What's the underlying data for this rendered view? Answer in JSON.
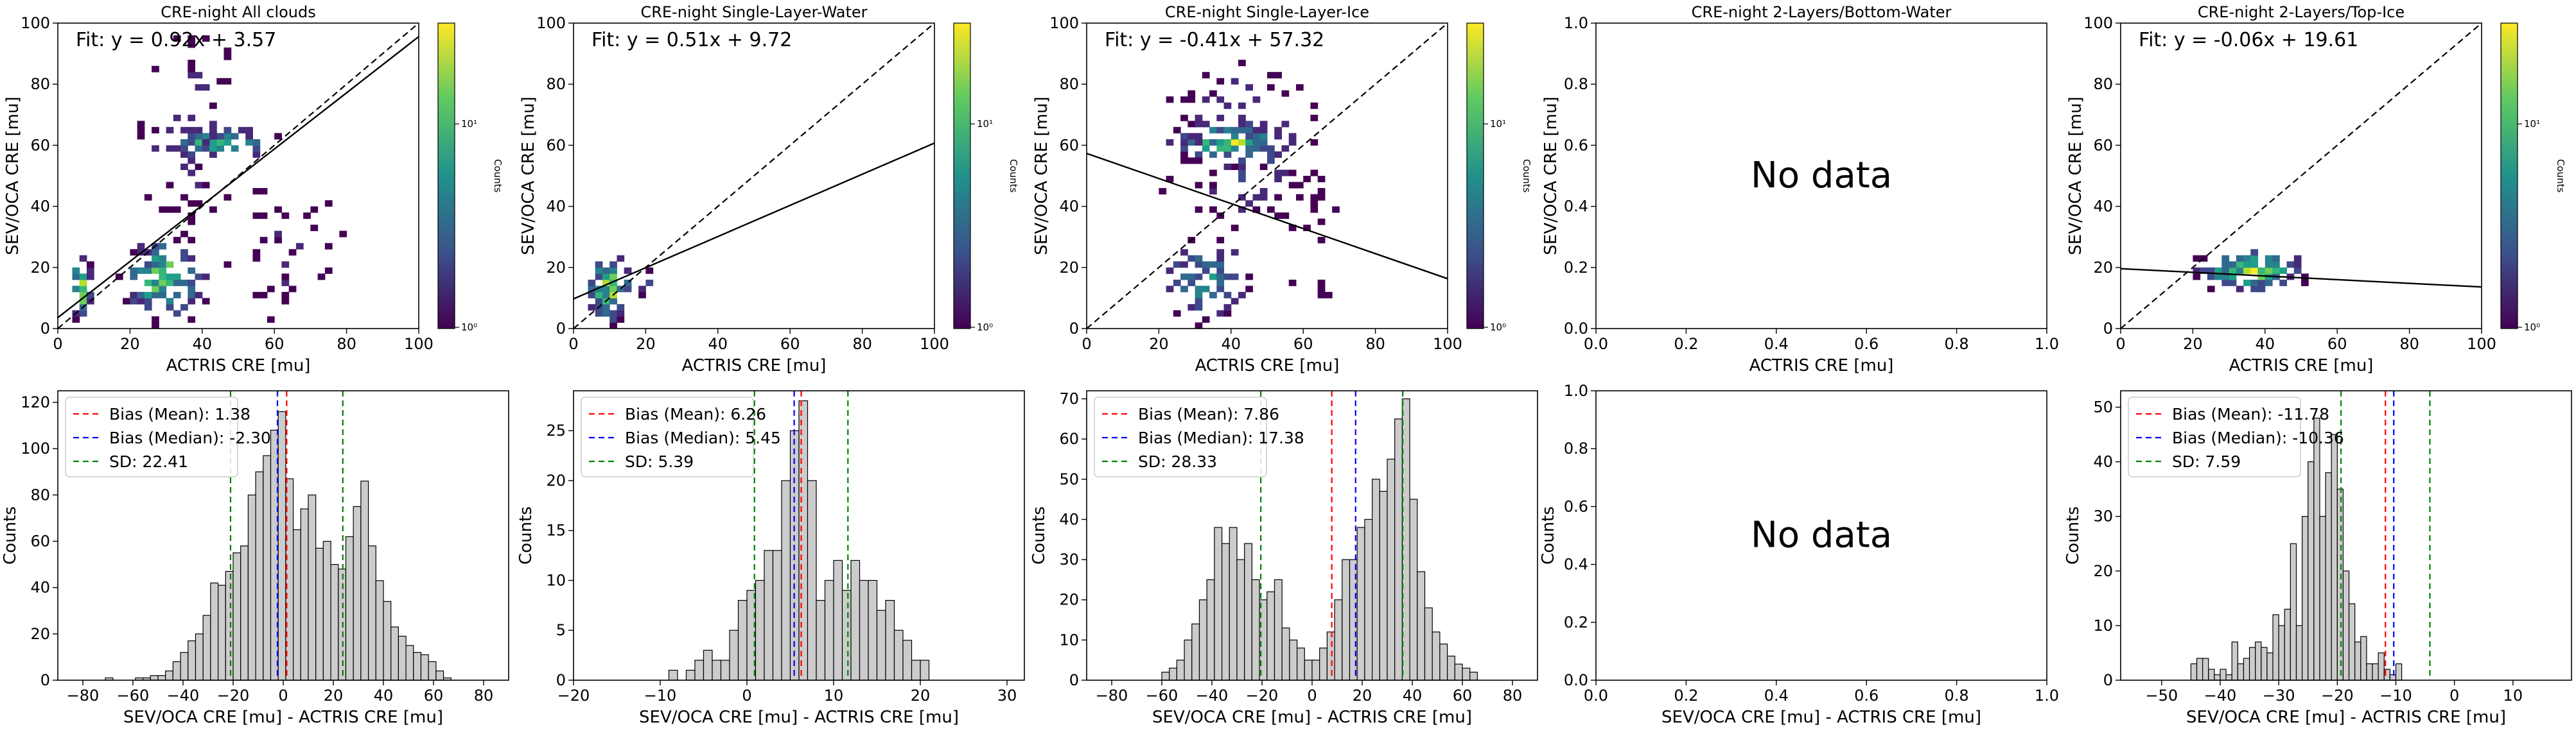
{
  "figure_title": "",
  "colorbar_label": "Counts",
  "nodata_text": "No data",
  "chart_data": [
    {
      "type": "heatmap",
      "title": "CRE-night All clouds",
      "xlabel": "ACTRIS CRE [mu]",
      "ylabel": "SEV/OCA CRE [mu]",
      "xlim": [
        0,
        100
      ],
      "ylim": [
        0,
        100
      ],
      "xticks": [
        "0",
        "20",
        "40",
        "60",
        "80",
        "100"
      ],
      "yticks": [
        "0",
        "20",
        "40",
        "60",
        "80",
        "100"
      ],
      "fit_text": "Fit: y = 0.92x + 3.57",
      "fit": {
        "slope": 0.92,
        "intercept": 3.57
      },
      "one_to_one": true,
      "colorbar": {
        "ticks": [
          "10⁰",
          "10¹"
        ],
        "label": "Counts"
      },
      "clusters": [
        {
          "x": [
            2,
            9
          ],
          "y": [
            0,
            24
          ],
          "weight": 1.0
        },
        {
          "x": [
            16,
            42
          ],
          "y": [
            0,
            30
          ],
          "weight": 0.95
        },
        {
          "x": [
            22,
            62
          ],
          "y": [
            54,
            66
          ],
          "weight": 0.75
        },
        {
          "x": [
            22,
            50
          ],
          "y": [
            28,
            98
          ],
          "weight": 0.25
        },
        {
          "x": [
            44,
            80
          ],
          "y": [
            0,
            48
          ],
          "weight": 0.15
        }
      ]
    },
    {
      "type": "heatmap",
      "title": "CRE-night Single-Layer-Water",
      "xlabel": "ACTRIS CRE [mu]",
      "ylabel": "SEV/OCA CRE [mu]",
      "xlim": [
        0,
        100
      ],
      "ylim": [
        0,
        100
      ],
      "xticks": [
        "0",
        "20",
        "40",
        "60",
        "80",
        "100"
      ],
      "yticks": [
        "0",
        "20",
        "40",
        "60",
        "80",
        "100"
      ],
      "fit_text": "Fit: y = 0.51x + 9.72",
      "fit": {
        "slope": 0.51,
        "intercept": 9.72
      },
      "one_to_one": true,
      "colorbar": {
        "ticks": [
          "10⁰",
          "10¹"
        ],
        "label": "Counts"
      },
      "clusters": [
        {
          "x": [
            2,
            16
          ],
          "y": [
            0,
            24
          ],
          "weight": 1.0
        },
        {
          "x": [
            16,
            22
          ],
          "y": [
            8,
            20
          ],
          "weight": 0.3
        }
      ]
    },
    {
      "type": "heatmap",
      "title": "CRE-night Single-Layer-Ice",
      "xlabel": "ACTRIS CRE [mu]",
      "ylabel": "SEV/OCA CRE [mu]",
      "xlim": [
        0,
        100
      ],
      "ylim": [
        0,
        100
      ],
      "xticks": [
        "0",
        "20",
        "40",
        "60",
        "80",
        "100"
      ],
      "yticks": [
        "0",
        "20",
        "40",
        "60",
        "80",
        "100"
      ],
      "fit_text": "Fit: y = -0.41x + 57.32",
      "fit": {
        "slope": -0.41,
        "intercept": 57.32
      },
      "one_to_one": true,
      "colorbar": {
        "ticks": [
          "10⁰",
          "10¹"
        ],
        "label": "Counts"
      },
      "clusters": [
        {
          "x": [
            20,
            58
          ],
          "y": [
            52,
            68
          ],
          "weight": 0.85
        },
        {
          "x": [
            18,
            46
          ],
          "y": [
            0,
            30
          ],
          "weight": 0.6
        },
        {
          "x": [
            20,
            66
          ],
          "y": [
            28,
            92
          ],
          "weight": 0.3
        },
        {
          "x": [
            50,
            76
          ],
          "y": [
            10,
            50
          ],
          "weight": 0.15
        }
      ]
    },
    {
      "type": "heatmap",
      "title": "CRE-night 2-Layers/Bottom-Water",
      "xlabel": "ACTRIS CRE [mu]",
      "ylabel": "SEV/OCA CRE [mu]",
      "xlim": [
        0,
        1
      ],
      "ylim": [
        0,
        1
      ],
      "xticks": [
        "0.0",
        "0.2",
        "0.4",
        "0.6",
        "0.8",
        "1.0"
      ],
      "yticks": [
        "0.0",
        "0.2",
        "0.4",
        "0.6",
        "0.8",
        "1.0"
      ],
      "nodata": true
    },
    {
      "type": "heatmap",
      "title": "CRE-night 2-Layers/Top-Ice",
      "xlabel": "ACTRIS CRE [mu]",
      "ylabel": "SEV/OCA CRE [mu]",
      "xlim": [
        0,
        100
      ],
      "ylim": [
        0,
        100
      ],
      "xticks": [
        "0",
        "20",
        "40",
        "60",
        "80",
        "100"
      ],
      "yticks": [
        "0",
        "20",
        "40",
        "60",
        "80",
        "100"
      ],
      "fit_text": "Fit: y = -0.06x + 19.61",
      "fit": {
        "slope": -0.06,
        "intercept": 19.61
      },
      "one_to_one": true,
      "colorbar": {
        "ticks": [
          "10⁰",
          "10¹"
        ],
        "label": "Counts"
      },
      "clusters": [
        {
          "x": [
            18,
            52
          ],
          "y": [
            10,
            26
          ],
          "weight": 0.95
        }
      ]
    },
    {
      "type": "bar",
      "xlabel": "SEV/OCA CRE [mu] - ACTRIS CRE [mu]",
      "ylabel": "Counts",
      "xlim": [
        -90,
        90
      ],
      "ylim": [
        0,
        125
      ],
      "xtick_values": [
        -80,
        -60,
        -40,
        -20,
        0,
        20,
        40,
        60,
        80
      ],
      "xticks": [
        "−80",
        "−60",
        "−40",
        "−20",
        "0",
        "20",
        "40",
        "60",
        "80"
      ],
      "ytick_values": [
        0,
        20,
        40,
        60,
        80,
        100,
        120
      ],
      "yticks": [
        "0",
        "20",
        "40",
        "60",
        "80",
        "100",
        "120"
      ],
      "bin_start": -80,
      "bin_width": 3,
      "values": [
        0,
        0,
        0,
        1,
        0,
        0,
        0,
        1,
        1,
        2,
        2,
        4,
        8,
        12,
        17,
        20,
        28,
        42,
        41,
        47,
        55,
        58,
        80,
        90,
        97,
        108,
        116,
        87,
        65,
        74,
        80,
        57,
        60,
        50,
        48,
        62,
        75,
        86,
        58,
        43,
        34,
        23,
        19,
        15,
        12,
        11,
        8,
        4,
        1,
        0,
        0,
        0,
        0,
        0,
        0,
        0,
        0
      ],
      "legend": [
        "Bias (Mean): 1.38",
        "Bias (Median): -2.30",
        "SD: 22.41"
      ],
      "mean": 1.38,
      "median": -2.3,
      "sd": 22.41
    },
    {
      "type": "bar",
      "xlabel": "SEV/OCA CRE [mu] - ACTRIS CRE [mu]",
      "ylabel": "Counts",
      "xlim": [
        -20,
        32
      ],
      "ylim": [
        0,
        29
      ],
      "xtick_values": [
        -20,
        -10,
        0,
        10,
        20,
        30
      ],
      "xticks": [
        "−20",
        "−10",
        "0",
        "10",
        "20",
        "30"
      ],
      "ytick_values": [
        0,
        5,
        10,
        15,
        20,
        25
      ],
      "yticks": [
        "0",
        "5",
        "10",
        "15",
        "20",
        "25"
      ],
      "bin_start": -9,
      "bin_width": 1,
      "values": [
        1,
        0,
        1,
        2,
        3,
        2,
        2,
        5,
        8,
        9,
        10,
        13,
        13,
        20,
        25,
        28,
        20,
        8,
        10,
        12,
        9,
        12,
        10,
        10,
        7,
        8,
        5,
        4,
        2,
        2
      ],
      "legend": [
        "Bias (Mean): 6.26",
        "Bias (Median): 5.45",
        "SD: 5.39"
      ],
      "mean": 6.26,
      "median": 5.45,
      "sd": 5.39
    },
    {
      "type": "bar",
      "xlabel": "SEV/OCA CRE [mu] - ACTRIS CRE [mu]",
      "ylabel": "Counts",
      "xlim": [
        -90,
        90
      ],
      "ylim": [
        0,
        72
      ],
      "xtick_values": [
        -80,
        -60,
        -40,
        -20,
        0,
        20,
        40,
        60,
        80
      ],
      "xticks": [
        "−80",
        "−60",
        "−40",
        "−20",
        "0",
        "20",
        "40",
        "60",
        "80"
      ],
      "ytick_values": [
        0,
        10,
        20,
        30,
        40,
        50,
        60,
        70
      ],
      "yticks": [
        "0",
        "10",
        "20",
        "30",
        "40",
        "50",
        "60",
        "70"
      ],
      "bin_start": -60,
      "bin_width": 3,
      "values": [
        2,
        3,
        5,
        10,
        14,
        20,
        25,
        38,
        34,
        38,
        30,
        34,
        25,
        20,
        22,
        25,
        13,
        10,
        8,
        5,
        5,
        8,
        12,
        20,
        30,
        30,
        38,
        40,
        50,
        47,
        55,
        65,
        70,
        45,
        27,
        18,
        12,
        9,
        6,
        4,
        3,
        2
      ],
      "legend": [
        "Bias (Mean): 7.86",
        "Bias (Median): 17.38",
        "SD: 28.33"
      ],
      "mean": 7.86,
      "median": 17.38,
      "sd": 28.33
    },
    {
      "type": "bar",
      "xlabel": "SEV/OCA CRE [mu] - ACTRIS CRE [mu]",
      "ylabel": "Counts",
      "xlim": [
        0,
        1
      ],
      "ylim": [
        0,
        1
      ],
      "xtick_values": [
        0.0,
        0.2,
        0.4,
        0.6,
        0.8,
        1.0
      ],
      "xticks": [
        "0.0",
        "0.2",
        "0.4",
        "0.6",
        "0.8",
        "1.0"
      ],
      "ytick_values": [
        0.0,
        0.2,
        0.4,
        0.6,
        0.8,
        1.0
      ],
      "yticks": [
        "0.0",
        "0.2",
        "0.4",
        "0.6",
        "0.8",
        "1.0"
      ],
      "nodata": true
    },
    {
      "type": "bar",
      "xlabel": "SEV/OCA CRE [mu] - ACTRIS CRE [mu]",
      "ylabel": "Counts",
      "xlim": [
        -57,
        20
      ],
      "ylim": [
        0,
        53
      ],
      "xtick_values": [
        -50,
        -40,
        -30,
        -20,
        -10,
        0,
        10
      ],
      "xticks": [
        "−50",
        "−40",
        "−30",
        "−20",
        "−10",
        "0",
        "10"
      ],
      "ytick_values": [
        0,
        10,
        20,
        30,
        40,
        50
      ],
      "yticks": [
        "0",
        "10",
        "20",
        "30",
        "40",
        "50"
      ],
      "bin_start": -45,
      "bin_width": 1,
      "values": [
        3,
        4,
        4,
        2,
        1,
        2,
        1,
        7,
        3,
        4,
        6,
        7,
        6,
        5,
        12,
        10,
        13,
        25,
        10,
        30,
        40,
        48,
        30,
        38,
        45,
        35,
        20,
        14,
        7,
        8,
        3,
        3,
        5,
        2,
        1,
        3
      ],
      "legend": [
        "Bias (Mean): -11.78",
        "Bias (Median): -10.36",
        "SD: 7.59"
      ],
      "mean": -11.78,
      "median": -10.36,
      "sd": 7.59
    }
  ]
}
